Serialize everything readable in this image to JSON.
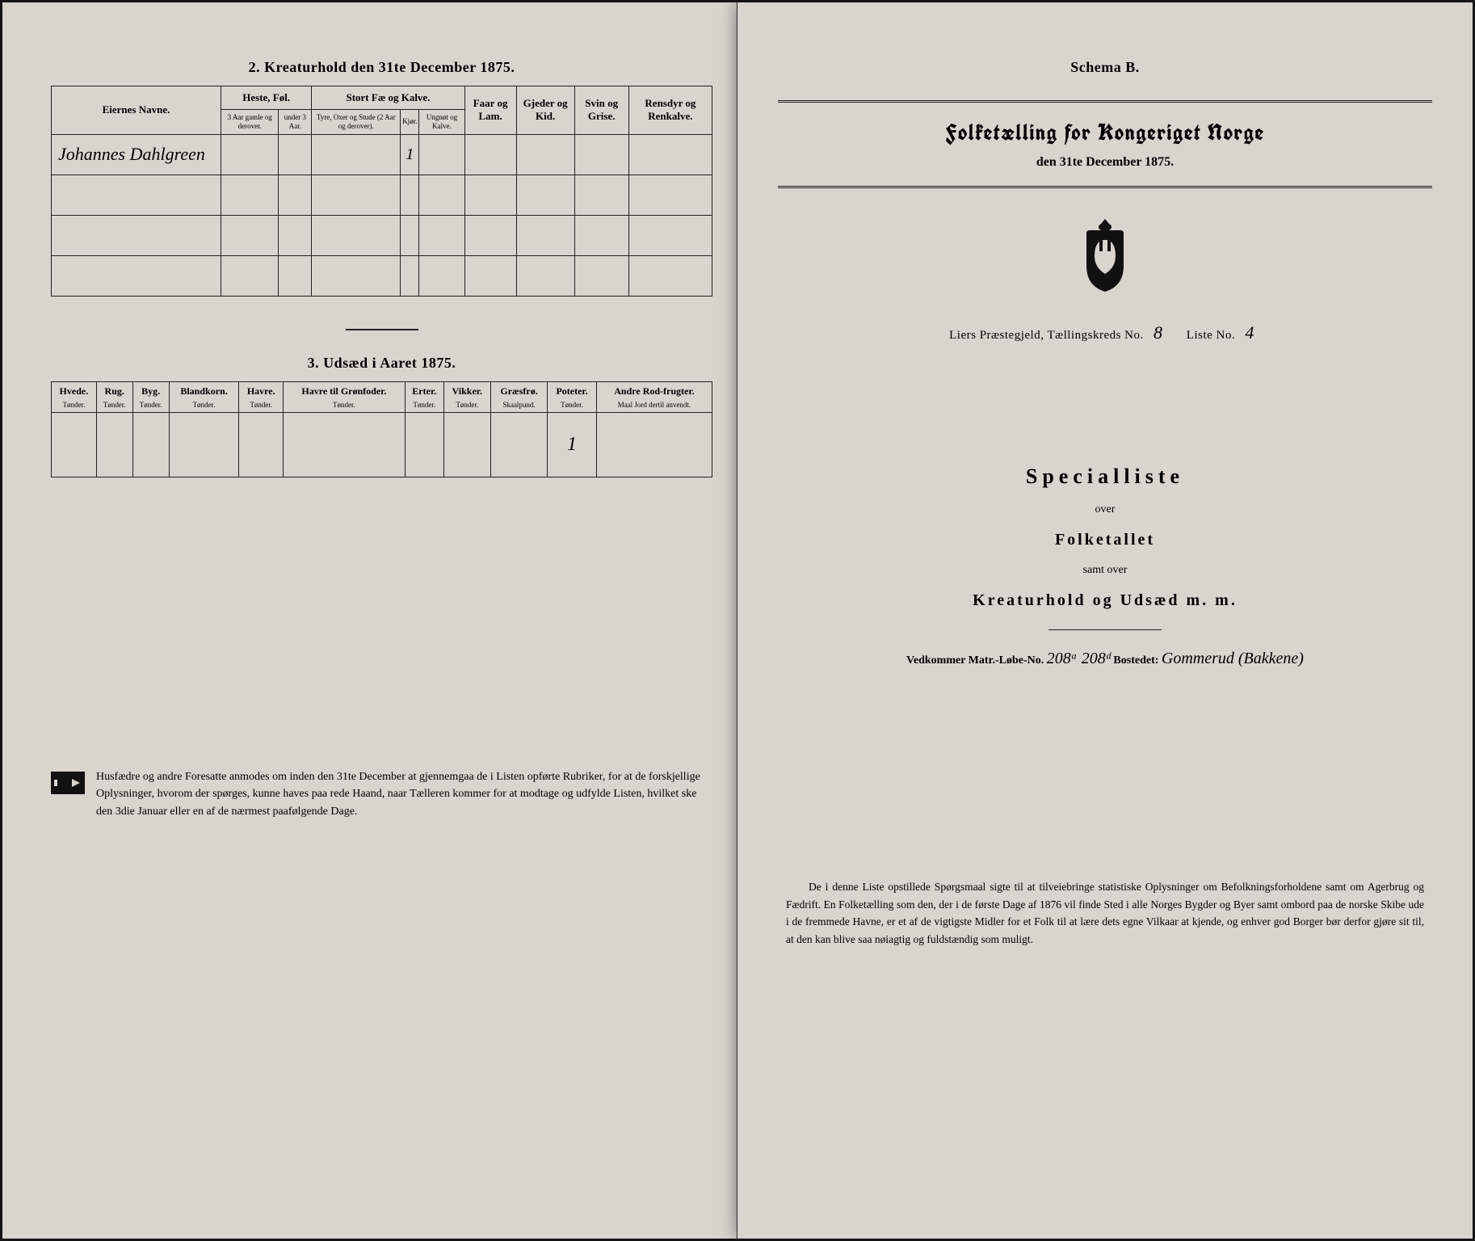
{
  "left": {
    "section2": {
      "title": "2. Kreaturhold den 31te December 1875.",
      "headers": {
        "owner": "Eiernes Navne.",
        "horses": "Heste, Føl.",
        "horses_sub": [
          "3 Aar gamle og derover.",
          "under 3 Aar."
        ],
        "cattle": "Stort Fæ og Kalve.",
        "cattle_sub": [
          "Tyre, Oxer og Stude (2 Aar og derover).",
          "Kjør.",
          "Ungnøt og Kalve."
        ],
        "sheep": "Faar og Lam.",
        "goats": "Gjeder og Kid.",
        "pigs": "Svin og Grise.",
        "reindeer": "Rensdyr og Renkalve."
      },
      "rows": [
        {
          "name": "Johannes Dahlgreen",
          "vals": [
            "",
            "",
            "",
            "1",
            "",
            "",
            "",
            "",
            ""
          ]
        },
        {
          "name": "",
          "vals": [
            "",
            "",
            "",
            "",
            "",
            "",
            "",
            "",
            ""
          ]
        },
        {
          "name": "",
          "vals": [
            "",
            "",
            "",
            "",
            "",
            "",
            "",
            "",
            ""
          ]
        },
        {
          "name": "",
          "vals": [
            "",
            "",
            "",
            "",
            "",
            "",
            "",
            "",
            ""
          ]
        }
      ]
    },
    "section3": {
      "title": "3. Udsæd i Aaret 1875.",
      "cols": [
        {
          "h": "Hvede.",
          "u": "Tønder."
        },
        {
          "h": "Rug.",
          "u": "Tønder."
        },
        {
          "h": "Byg.",
          "u": "Tønder."
        },
        {
          "h": "Blandkorn.",
          "u": "Tønder."
        },
        {
          "h": "Havre.",
          "u": "Tønder."
        },
        {
          "h": "Havre til Grønfoder.",
          "u": "Tønder."
        },
        {
          "h": "Erter.",
          "u": "Tønder."
        },
        {
          "h": "Vikker.",
          "u": "Tønder."
        },
        {
          "h": "Græsfrø.",
          "u": "Skaalpund."
        },
        {
          "h": "Poteter.",
          "u": "Tønder."
        },
        {
          "h": "Andre Rod-frugter.",
          "u": "Maal Jord dertil anvendt."
        }
      ],
      "vals": [
        "",
        "",
        "",
        "",
        "",
        "",
        "",
        "",
        "",
        "1",
        ""
      ]
    },
    "note": "Husfædre og andre Foresatte anmodes om inden den 31te December at gjennemgaa de i Listen opførte Rubriker, for at de forskjellige Oplysninger, hvorom der spørges, kunne haves paa rede Haand, naar Tælleren kommer for at modtage og udfylde Listen, hvilket ske den 3die Januar eller en af de nærmest paafølgende Dage."
  },
  "right": {
    "schema": "Schema B.",
    "census_title": "Folketælling for Kongeriget Norge",
    "census_date": "den 31te December 1875.",
    "parish_label": "Liers Præstegjeld, Tællingskreds No.",
    "kreds_no": "8",
    "liste_label": "Liste No.",
    "liste_no": "4",
    "special_title": "Specialliste",
    "over": "over",
    "folketallet": "Folketallet",
    "samt_over": "samt over",
    "kreatur": "Kreaturhold og Udsæd m. m.",
    "matr_line_a": "Vedkommer Matr.-Løbe-No.",
    "matr_no": "208ᵃ 208ᵈ",
    "bostedet_label": "Bostedet:",
    "bostedet": "Gommerud (Bakkene)",
    "bottom_note": "De i denne Liste opstillede Spørgsmaal sigte til at tilveiebringe statistiske Oplysninger om Befolkningsforholdene samt om Agerbrug og Fædrift.   En Folketælling som den, der i de første Dage af 1876 vil finde Sted i alle Norges Bygder og Byer samt ombord paa de norske Skibe ude i de fremmede Havne, er et af de vigtigste Midler for et Folk til at lære dets egne Vilkaar at kjende, og enhver god Borger bør derfor gjøre sit til, at den kan blive saa nøiagtig og fuldstændig som muligt."
  }
}
